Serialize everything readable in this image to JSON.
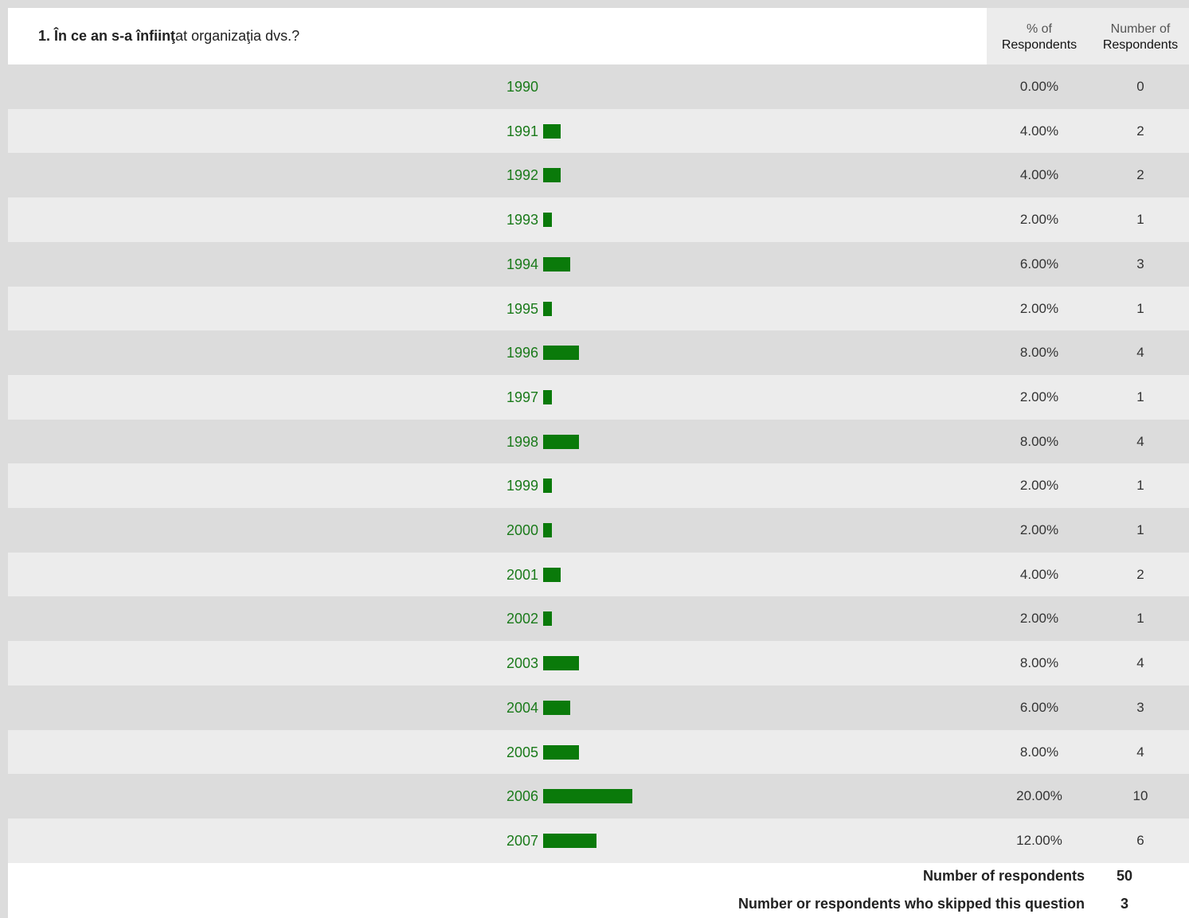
{
  "question": {
    "number_prefix": "1.",
    "text_bold_1": "În ce an s-a înfiinţ",
    "text_normal_1": "at organizaţ",
    "text_normal_2": "ia dvs.?"
  },
  "headers": {
    "pct_line1": "% of",
    "pct_line2": "Respondents",
    "num_line1": "Number of",
    "num_line2": "Respondents"
  },
  "colors": {
    "bar": "#0a7a0a",
    "label": "#1a7a1a",
    "row_dark": "#dcdcdc",
    "row_light": "#ececec"
  },
  "chart_data": {
    "type": "bar",
    "orientation": "horizontal",
    "categories": [
      "1990",
      "1991",
      "1992",
      "1993",
      "1994",
      "1995",
      "1996",
      "1997",
      "1998",
      "1999",
      "2000",
      "2001",
      "2002",
      "2003",
      "2004",
      "2005",
      "2006",
      "2007"
    ],
    "values": [
      0,
      4,
      4,
      2,
      6,
      2,
      8,
      2,
      8,
      2,
      2,
      4,
      2,
      8,
      6,
      8,
      20,
      12
    ],
    "value_labels": [
      "0.00%",
      "4.00%",
      "4.00%",
      "2.00%",
      "6.00%",
      "2.00%",
      "8.00%",
      "2.00%",
      "8.00%",
      "2.00%",
      "2.00%",
      "4.00%",
      "2.00%",
      "8.00%",
      "6.00%",
      "8.00%",
      "20.00%",
      "12.00%"
    ],
    "counts": [
      0,
      2,
      2,
      1,
      3,
      1,
      4,
      1,
      4,
      1,
      1,
      2,
      1,
      4,
      3,
      4,
      10,
      6
    ],
    "title": "1. În ce an s-a înfiinţat organizaţia dvs.?",
    "ylabel": "% of Respondents"
  },
  "footer": {
    "respondents_label": "Number of respondents",
    "respondents_value": "50",
    "skipped_label": "Number or respondents who skipped this question",
    "skipped_value": "3"
  }
}
